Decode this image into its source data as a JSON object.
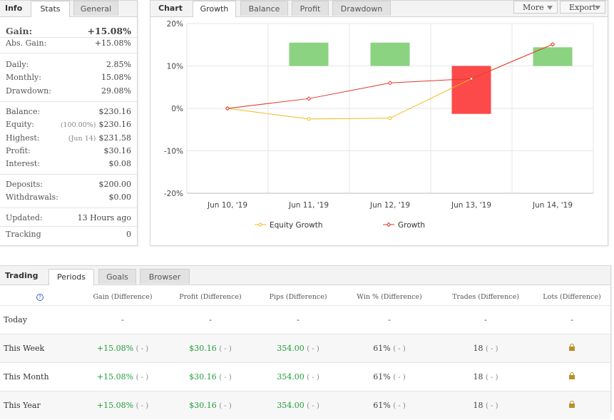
{
  "info": {
    "title": "Info",
    "tabs": [
      "Stats",
      "General"
    ],
    "gain": {
      "label": "Gain:",
      "value": "+15.08%"
    },
    "abs_gain": {
      "label": "Abs. Gain:",
      "value": "+15.08%"
    },
    "daily": {
      "label": "Daily:",
      "value": "2.85%"
    },
    "monthly": {
      "label": "Monthly:",
      "value": "15.08%"
    },
    "drawdown": {
      "label": "Drawdown:",
      "value": "29.08%"
    },
    "balance": {
      "label": "Balance:",
      "value": "$230.16"
    },
    "equity": {
      "label": "Equity:",
      "sub": "(100.00%)",
      "value": "$230.16"
    },
    "highest": {
      "label": "Highest:",
      "sub": "(Jun 14)",
      "value": "$231.58"
    },
    "profit": {
      "label": "Profit:",
      "value": "$30.16"
    },
    "interest": {
      "label": "Interest:",
      "value": "$0.08"
    },
    "deposits": {
      "label": "Deposits:",
      "value": "$200.00"
    },
    "withdrawals": {
      "label": "Withdrawals:",
      "value": "$0.00"
    },
    "updated": {
      "label": "Updated:",
      "value": "13 Hours ago"
    },
    "tracking": {
      "label": "Tracking",
      "value": "0"
    }
  },
  "chart_panel": {
    "title": "Chart",
    "tabs": [
      "Growth",
      "Balance",
      "Profit",
      "Drawdown"
    ],
    "more": "More",
    "export": "Export"
  },
  "chart_data": {
    "type": "bar",
    "categories": [
      "Jun 10, '19",
      "Jun 11, '19",
      "Jun 12, '19",
      "Jun 13, '19",
      "Jun 14, '19"
    ],
    "y_ticks": [
      "20%",
      "10%",
      "0%",
      "-10%",
      "-20%"
    ],
    "ylim": [
      -20,
      20
    ],
    "bars": [
      {
        "category": "Jun 11, '19",
        "low": 10,
        "high": 15.5,
        "color": "#8bd281"
      },
      {
        "category": "Jun 12, '19",
        "low": 10,
        "high": 15.5,
        "color": "#8bd281"
      },
      {
        "category": "Jun 13, '19",
        "low": -1.3,
        "high": 10,
        "color": "#fc4a4a"
      },
      {
        "category": "Jun 14, '19",
        "low": 10,
        "high": 14.4,
        "color": "#8bd281"
      }
    ],
    "series": [
      {
        "name": "Equity Growth",
        "color": "#f2b81a",
        "values": [
          0,
          -2.5,
          -2.3,
          7.0,
          15.1
        ]
      },
      {
        "name": "Growth",
        "color": "#e0382c",
        "values": [
          0,
          2.3,
          6.0,
          7.0,
          15.1
        ]
      }
    ],
    "grid": true,
    "legend_position": "bottom"
  },
  "trading": {
    "title": "Trading",
    "tabs": [
      "Periods",
      "Goals",
      "Browser"
    ],
    "help_glyph": "?",
    "columns": [
      "Gain (Difference)",
      "Profit (Difference)",
      "Pips (Difference)",
      "Win % (Difference)",
      "Trades (Difference)",
      "Lots (Difference)"
    ],
    "rows": [
      {
        "label": "Today",
        "gain": "-",
        "gain_diff": "",
        "profit": "-",
        "profit_diff": "",
        "pips": "-",
        "pips_diff": "",
        "win": "-",
        "win_diff": "",
        "trades": "-",
        "trades_diff": "",
        "lots": "-"
      },
      {
        "label": "This Week",
        "gain": "+15.08%",
        "gain_diff": "( - )",
        "profit": "$30.16",
        "profit_diff": "( - )",
        "pips": "354.00",
        "pips_diff": "( - )",
        "win": "61%",
        "win_diff": "( - )",
        "trades": "18",
        "trades_diff": "( - )",
        "lots": ""
      },
      {
        "label": "This Month",
        "gain": "+15.08%",
        "gain_diff": "( - )",
        "profit": "$30.16",
        "profit_diff": "( - )",
        "pips": "354.00",
        "pips_diff": "( - )",
        "win": "61%",
        "win_diff": "( - )",
        "trades": "18",
        "trades_diff": "( - )",
        "lots": ""
      },
      {
        "label": "This Year",
        "gain": "+15.08%",
        "gain_diff": "( - )",
        "profit": "$30.16",
        "profit_diff": "( - )",
        "pips": "354.00",
        "pips_diff": "( - )",
        "win": "61%",
        "win_diff": "( - )",
        "trades": "18",
        "trades_diff": "( - )",
        "lots": ""
      }
    ]
  }
}
